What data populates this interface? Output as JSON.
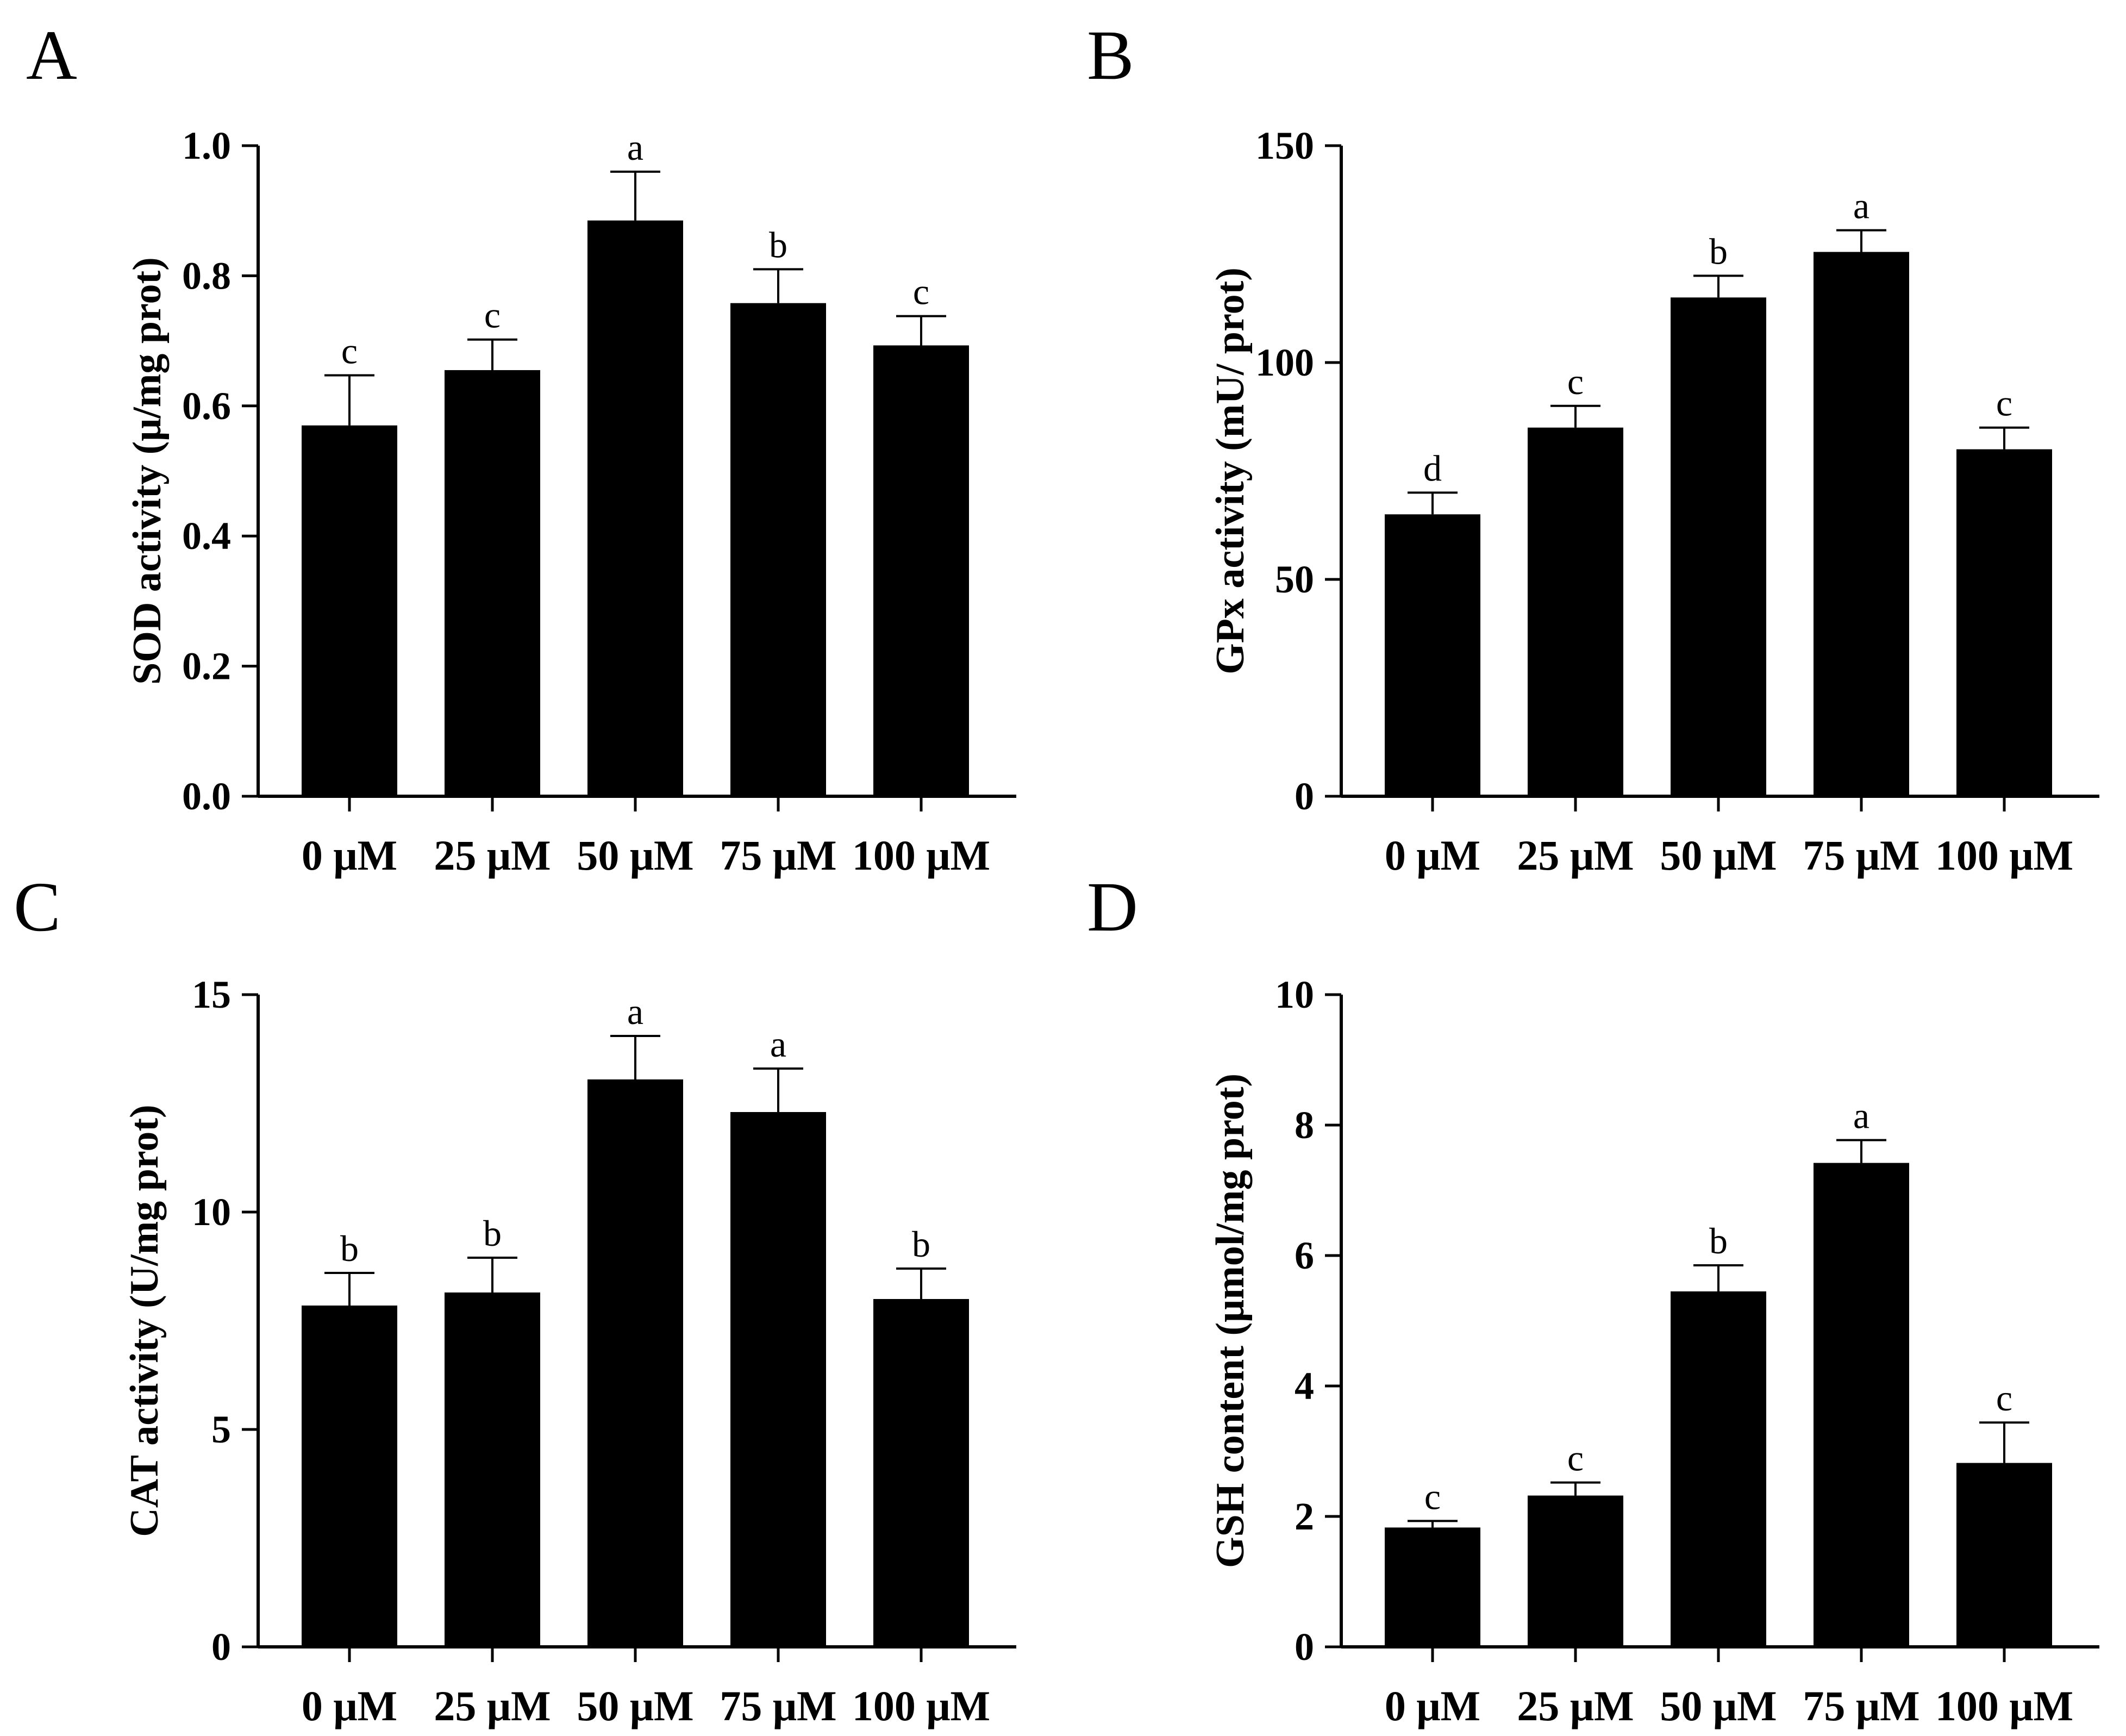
{
  "colors": {
    "bar": "#000000",
    "axis": "#000000",
    "background": "#ffffff"
  },
  "chart_data": [
    {
      "panel": "A",
      "type": "bar",
      "categories": [
        "0 μM",
        "25 μM",
        "50 μM",
        "75 μM",
        "100 μM"
      ],
      "values": [
        0.57,
        0.655,
        0.885,
        0.758,
        0.693
      ],
      "errors": [
        0.077,
        0.047,
        0.075,
        0.052,
        0.045
      ],
      "significance": [
        "c",
        "c",
        "a",
        "b",
        "c"
      ],
      "ylabel": "SOD activity (μ/mg prot)",
      "xlabel": "",
      "ylim": [
        0,
        1.0
      ],
      "yticks": [
        0.0,
        0.2,
        0.4,
        0.6,
        0.8,
        1.0
      ],
      "ytick_labels": [
        "0.0",
        "0.2",
        "0.4",
        "0.6",
        "0.8",
        "1.0"
      ]
    },
    {
      "panel": "B",
      "type": "bar",
      "categories": [
        "0 μM",
        "25 μM",
        "50 μM",
        "75 μM",
        "100 μM"
      ],
      "values": [
        65,
        85,
        115,
        125.5,
        80
      ],
      "errors": [
        5,
        5,
        5,
        5,
        5
      ],
      "significance": [
        "d",
        "c",
        "b",
        "a",
        "c"
      ],
      "ylabel": "GPx activity (mU/ prot)",
      "xlabel": "",
      "ylim": [
        0,
        150
      ],
      "yticks": [
        0,
        50,
        100,
        150
      ],
      "ytick_labels": [
        "0",
        "50",
        "100",
        "150"
      ]
    },
    {
      "panel": "C",
      "type": "bar",
      "categories": [
        "0 μM",
        "25 μM",
        "50 μM",
        "75 μM",
        "100 μM"
      ],
      "values": [
        7.85,
        8.15,
        13.05,
        12.3,
        8.0
      ],
      "errors": [
        0.75,
        0.8,
        1.0,
        1.0,
        0.7
      ],
      "significance": [
        "b",
        "b",
        "a",
        "a",
        "b"
      ],
      "ylabel": "CAT activity (U/mg prot)",
      "xlabel": "",
      "ylim": [
        0,
        15
      ],
      "yticks": [
        0,
        5,
        10,
        15
      ],
      "ytick_labels": [
        "0",
        "5",
        "10",
        "15"
      ]
    },
    {
      "panel": "D",
      "type": "bar",
      "categories": [
        "0 μM",
        "25 μM",
        "50 μM",
        "75 μM",
        "100 μM"
      ],
      "values": [
        1.83,
        2.32,
        5.45,
        7.42,
        2.82
      ],
      "errors": [
        0.1,
        0.2,
        0.4,
        0.35,
        0.62
      ],
      "significance": [
        "c",
        "c",
        "b",
        "a",
        "c"
      ],
      "ylabel": "GSH content (μmol/mg prot)",
      "xlabel": "",
      "ylim": [
        0,
        10
      ],
      "yticks": [
        0,
        2,
        4,
        6,
        8,
        10
      ],
      "ytick_labels": [
        "0",
        "2",
        "4",
        "6",
        "8",
        "10"
      ]
    }
  ]
}
